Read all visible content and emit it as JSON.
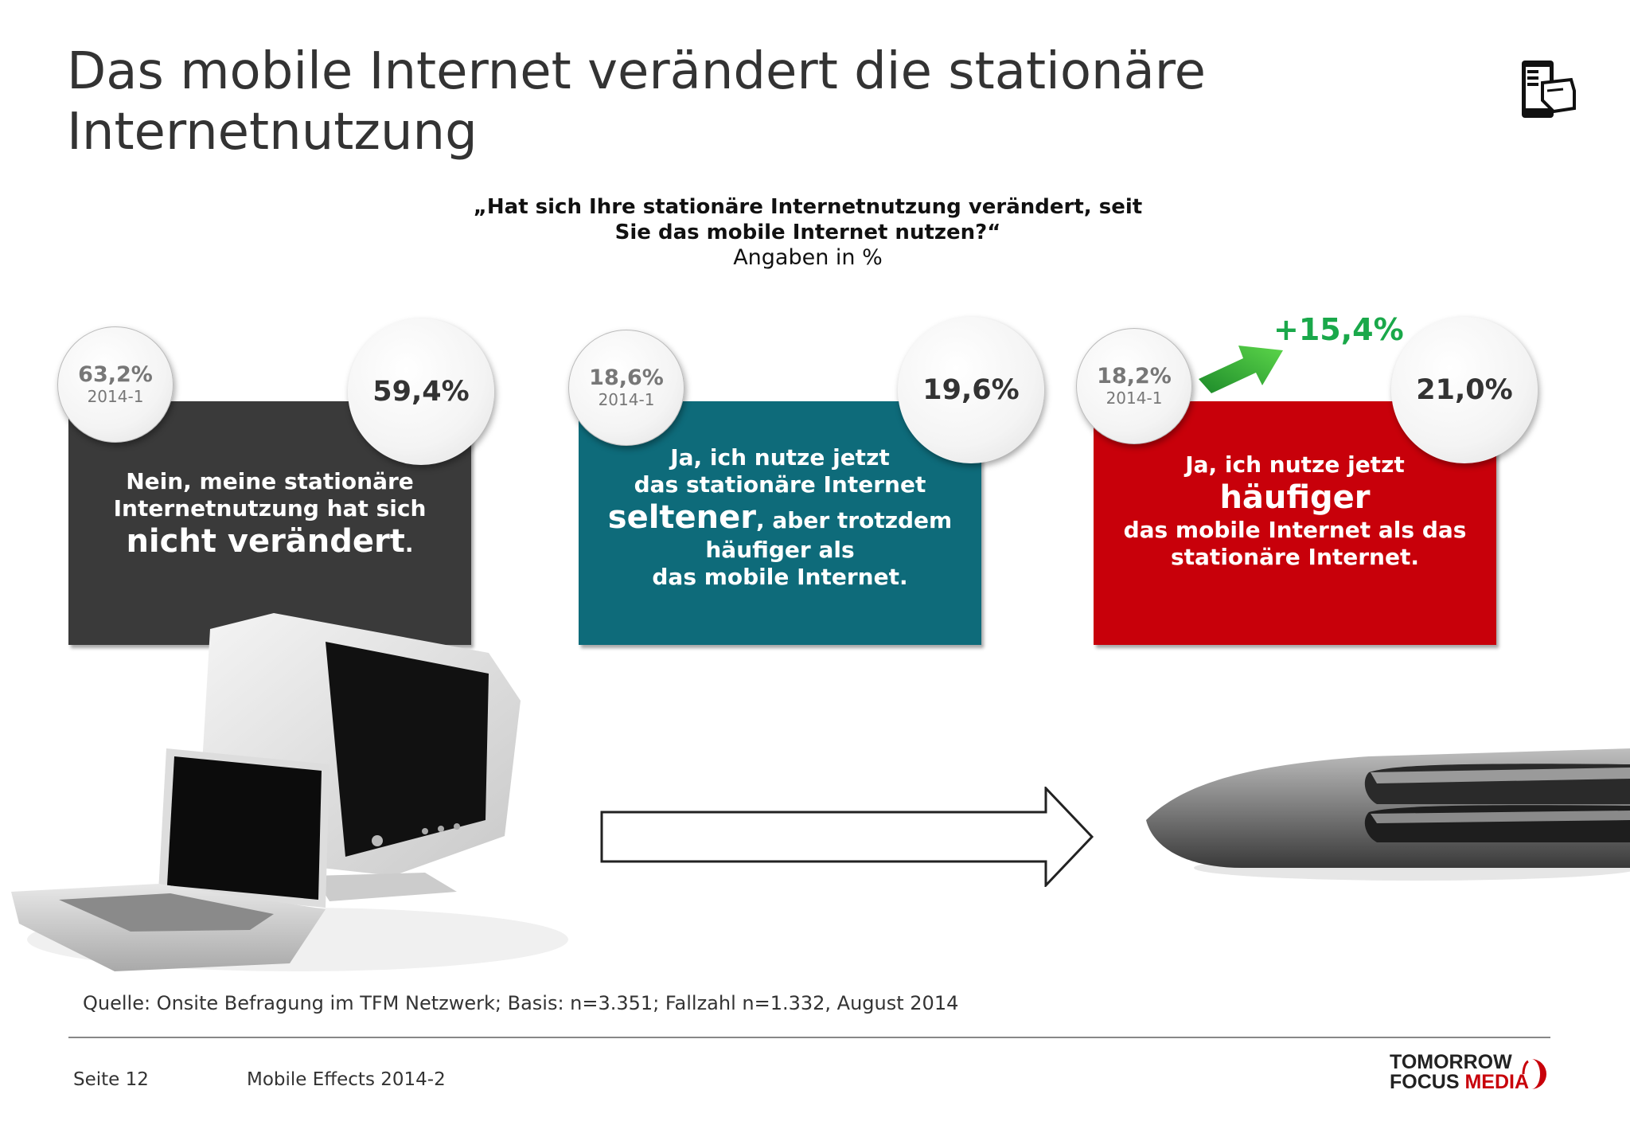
{
  "title": "Das mobile Internet verändert die stationäre Internetnutzung",
  "question_line1": "„Hat sich Ihre stationäre Internetnutzung verändert, seit",
  "question_line2": "Sie das mobile Internet nutzen?“",
  "unit_note": "Angaben in %",
  "prev_wave_label": "2014-1",
  "colors": {
    "box1": "#3a3a3a",
    "box2": "#0e6b7a",
    "box3": "#c8000a",
    "delta": "#1aa84a"
  },
  "chart_data": {
    "type": "table",
    "unit": "%",
    "categories": [
      "Nein, meine stationäre Internetnutzung hat sich nicht verändert.",
      "Ja, ich nutze jetzt das stationäre Internet seltener, aber trotzdem häufiger als das mobile Internet.",
      "Ja, ich nutze jetzt häufiger das mobile Internet als das stationäre Internet."
    ],
    "series": [
      {
        "name": "2014-1",
        "values": [
          63.2,
          18.6,
          18.2
        ]
      },
      {
        "values": [
          59.4,
          19.6,
          21.0
        ]
      }
    ],
    "prev_labels": [
      "63,2%",
      "18,6%",
      "18,2%"
    ],
    "current_labels": [
      "59,4%",
      "19,6%",
      "21,0%"
    ],
    "annotation": "+15,4%"
  },
  "boxes": [
    {
      "line1": "Nein, meine stationäre",
      "line2": "Internetnutzung hat sich",
      "big": "nicht verändert",
      "tail": "."
    },
    {
      "line1": "Ja, ich nutze jetzt",
      "line2": "das stationäre Internet",
      "big": "seltener",
      "rest": ", aber trotzdem",
      "line4": "häufiger als",
      "line5": "das mobile Internet."
    },
    {
      "line1": "Ja, ich nutze jetzt",
      "big": "häufiger",
      "line3": "das mobile Internet als das",
      "line4": "stationäre Internet."
    }
  ],
  "footer": {
    "source": "Quelle: Onsite Befragung im TFM Netzwerk; Basis: n=3.351; Fallzahl n=1.332, August 2014",
    "page": "Seite 12",
    "report": "Mobile Effects 2014-2",
    "logo_line1": "TOMORROW",
    "logo_line2a": "FOCUS",
    "logo_line2b": "MEDIA"
  }
}
